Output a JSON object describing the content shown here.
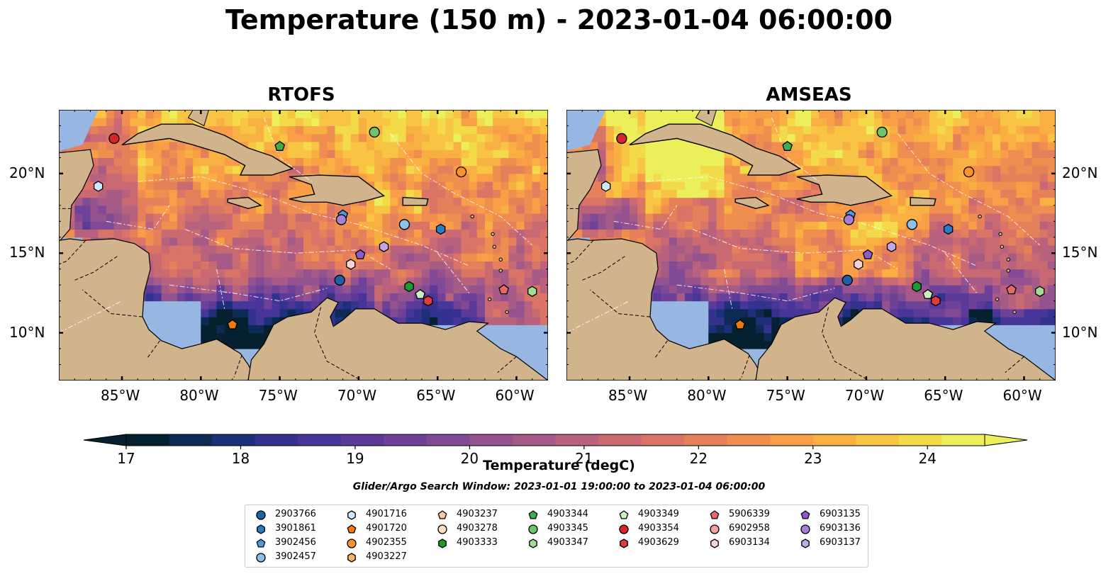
{
  "title": "Temperature (150 m) - 2023-01-04 06:00:00",
  "panels": [
    {
      "name": "RTOFS"
    },
    {
      "name": "AMSEAS"
    }
  ],
  "axes": {
    "lon_ticks": [
      "85°W",
      "80°W",
      "75°W",
      "70°W",
      "65°W",
      "60°W"
    ],
    "lat_ticks": [
      "20°N",
      "15°N",
      "10°N"
    ],
    "lon_range": [
      -89,
      -58
    ],
    "lat_range": [
      7,
      24
    ]
  },
  "colorbar": {
    "label": "Temperature (degC)",
    "ticks": [
      "17",
      "18",
      "19",
      "20",
      "21",
      "22",
      "23",
      "24"
    ],
    "range": [
      17,
      24.5
    ],
    "colors": [
      "#05202f",
      "#0d2a55",
      "#1e2f7a",
      "#33328f",
      "#473599",
      "#5b3a9a",
      "#6e4298",
      "#814a94",
      "#94538f",
      "#a65b87",
      "#b8627e",
      "#c96a73",
      "#d97466",
      "#e6805a",
      "#f08e4f",
      "#f79e46",
      "#f9b042",
      "#f7c543",
      "#f2da48",
      "#ebf05a"
    ]
  },
  "search_window": "Glider/Argo Search Window: 2023-01-01 19:00:00 to 2023-01-04 06:00:00",
  "legend": [
    {
      "id": "2903766",
      "marker": "circle",
      "color": "#1f5fa8"
    },
    {
      "id": "3901861",
      "marker": "hexagon",
      "color": "#2b7cc2"
    },
    {
      "id": "3902456",
      "marker": "pentagon",
      "color": "#4a9be0"
    },
    {
      "id": "3902457",
      "marker": "circle",
      "color": "#8fc0ec"
    },
    {
      "id": "4901716",
      "marker": "hexagon",
      "color": "#cfe6fb"
    },
    {
      "id": "4901720",
      "marker": "pentagon",
      "color": "#f07a12"
    },
    {
      "id": "4902355",
      "marker": "circle",
      "color": "#f7932a"
    },
    {
      "id": "4903227",
      "marker": "hexagon",
      "color": "#fbb36a"
    },
    {
      "id": "4903237",
      "marker": "pentagon",
      "color": "#fdc99a"
    },
    {
      "id": "4903278",
      "marker": "circle",
      "color": "#fde0c4"
    },
    {
      "id": "4903333",
      "marker": "hexagon",
      "color": "#1f9a2e"
    },
    {
      "id": "4903344",
      "marker": "pentagon",
      "color": "#3fae44"
    },
    {
      "id": "4903345",
      "marker": "circle",
      "color": "#6dc46a"
    },
    {
      "id": "4903347",
      "marker": "hexagon",
      "color": "#a3dc97"
    },
    {
      "id": "4903349",
      "marker": "pentagon",
      "color": "#cdf0c4"
    },
    {
      "id": "4903354",
      "marker": "circle",
      "color": "#d7262a"
    },
    {
      "id": "4903629",
      "marker": "hexagon",
      "color": "#e03b3e"
    },
    {
      "id": "5906339",
      "marker": "pentagon",
      "color": "#e8686a"
    },
    {
      "id": "6902958",
      "marker": "circle",
      "color": "#f0a09f"
    },
    {
      "id": "6903134",
      "marker": "hexagon",
      "color": "#f8d2d0"
    },
    {
      "id": "6903135",
      "marker": "pentagon",
      "color": "#8a5cc4"
    },
    {
      "id": "6903136",
      "marker": "circle",
      "color": "#a77fd6"
    },
    {
      "id": "6903137",
      "marker": "hexagon",
      "color": "#c4a6e6"
    }
  ],
  "chart_data": {
    "type": "map",
    "title": "Temperature (150 m) - 2023-01-04 06:00:00",
    "xlabel": "",
    "ylabel": "",
    "xlim": [
      -89,
      -58
    ],
    "ylim": [
      7,
      24
    ],
    "colorbar_label": "Temperature (degC)",
    "colorbar_range": [
      17,
      24.5
    ],
    "points": [
      {
        "id": "4903354",
        "lon": -85.5,
        "lat": 22.2
      },
      {
        "id": "4901716",
        "lon": -86.5,
        "lat": 19.2
      },
      {
        "id": "4903344",
        "lon": -75.0,
        "lat": 21.7
      },
      {
        "id": "4903345",
        "lon": -69.0,
        "lat": 22.6
      },
      {
        "id": "4902355",
        "lon": -63.5,
        "lat": 20.1
      },
      {
        "id": "3902456",
        "lon": -71.0,
        "lat": 17.4
      },
      {
        "id": "6903136",
        "lon": -71.1,
        "lat": 17.1
      },
      {
        "id": "3902457",
        "lon": -67.1,
        "lat": 16.8
      },
      {
        "id": "3901861",
        "lon": -64.8,
        "lat": 16.5
      },
      {
        "id": "6903137",
        "lon": -68.4,
        "lat": 15.4
      },
      {
        "id": "6903135",
        "lon": -69.9,
        "lat": 14.9
      },
      {
        "id": "6903134",
        "lon": -70.5,
        "lat": 14.3
      },
      {
        "id": "2903766",
        "lon": -71.2,
        "lat": 13.3
      },
      {
        "id": "4903333",
        "lon": -66.8,
        "lat": 12.9
      },
      {
        "id": "4903349",
        "lon": -66.1,
        "lat": 12.4
      },
      {
        "id": "4903629",
        "lon": -65.6,
        "lat": 12.0
      },
      {
        "id": "5906339",
        "lon": -60.8,
        "lat": 12.7
      },
      {
        "id": "4903347",
        "lon": -59.0,
        "lat": 12.6
      },
      {
        "id": "4901720",
        "lon": -78.0,
        "lat": 10.5
      }
    ]
  }
}
